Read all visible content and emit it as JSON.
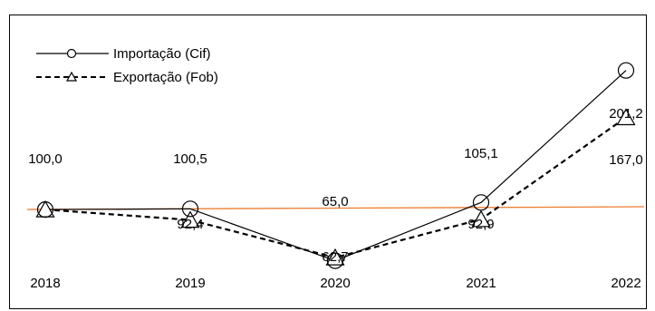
{
  "chart_data": {
    "type": "line",
    "categories": [
      "2018",
      "2019",
      "2020",
      "2021",
      "2022"
    ],
    "series": [
      {
        "name": "Importação (Cif)",
        "values": [
          100.0,
          100.5,
          62.7,
          105.1,
          201.2
        ],
        "value_labels": [
          "100,0",
          "100,5",
          "62,7",
          "105,1",
          "201,2"
        ],
        "color": "#000000",
        "line_style": "solid",
        "marker": "circle"
      },
      {
        "name": "Exportação (Fob)",
        "values": [
          100.0,
          92.4,
          65.0,
          92.9,
          167.0
        ],
        "value_labels": [
          "100,0",
          "92,4",
          "65,0",
          "92,9",
          "167,0"
        ],
        "color": "#000000",
        "line_style": "dashed",
        "marker": "triangle"
      }
    ],
    "trend_line": {
      "color": "#ED7D31",
      "from": 100.0,
      "to": 102.0
    },
    "ylim": [
      40,
      230
    ],
    "legend_position": "top-left",
    "grid": false
  }
}
